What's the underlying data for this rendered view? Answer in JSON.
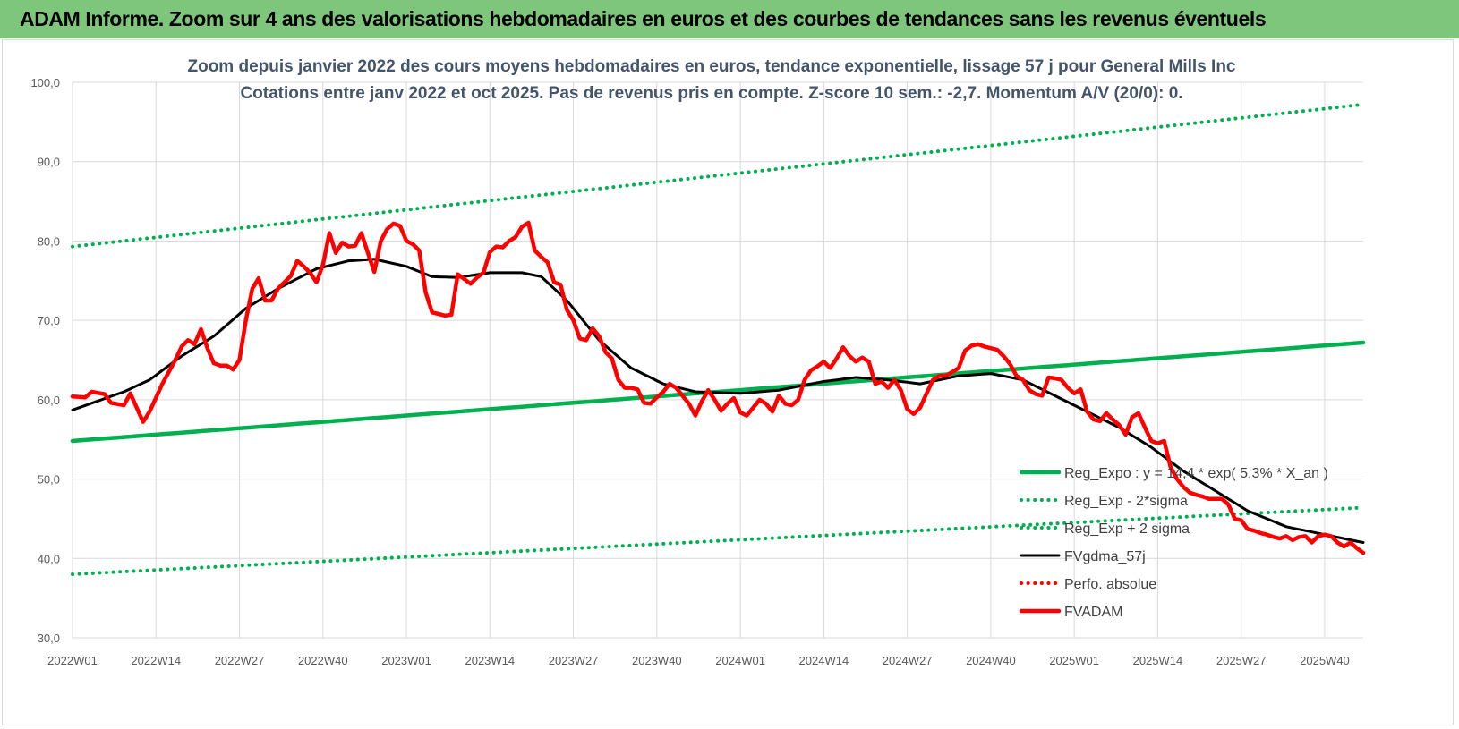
{
  "banner": {
    "title": "ADAM Informe. Zoom sur 4 ans des valorisations hebdomadaires en euros et des courbes de tendances sans les revenus éventuels"
  },
  "chart_data": {
    "type": "line",
    "title": "Zoom depuis janvier 2022 des cours moyens hebdomadaires en euros, tendance exponentielle, lissage 57 j pour General Mills Inc",
    "subtitle": "Cotations entre janv 2022 et oct 2025. Pas de revenus pris en compte. Z-score 10 sem.: -2,7. Momentum A/V (20/0): 0.",
    "xlabel": "",
    "ylabel": "",
    "ylim": [
      30,
      100
    ],
    "y_ticks": [
      "30,0",
      "40,0",
      "50,0",
      "60,0",
      "70,0",
      "80,0",
      "90,0",
      "100,0"
    ],
    "x_ticks": [
      "2022W01",
      "2022W14",
      "2022W27",
      "2022W40",
      "2023W01",
      "2023W14",
      "2023W27",
      "2023W40",
      "2024W01",
      "2024W14",
      "2024W27",
      "2024W40",
      "2025W01",
      "2025W14",
      "2025W27",
      "2025W40"
    ],
    "x_tick_index": [
      0,
      13,
      26,
      39,
      52,
      65,
      78,
      91,
      104,
      117,
      130,
      143,
      156,
      169,
      182,
      195
    ],
    "n_weeks": 202,
    "grid": true,
    "legend_position": "bottom-right",
    "series": [
      {
        "name": "Reg_Expo : y = 14,4 * exp( 5,3% * X_an )",
        "color": "#00b050",
        "style": "solid-thick",
        "anchors": [
          [
            0,
            54.8
          ],
          [
            201,
            67.2
          ]
        ]
      },
      {
        "name": "Reg_Exp - 2*sigma",
        "color": "#00b050",
        "style": "dotted",
        "anchors": [
          [
            0,
            38.0
          ],
          [
            201,
            46.4
          ]
        ]
      },
      {
        "name": "Reg_Exp + 2 sigma",
        "color": "#00b050",
        "style": "dotted",
        "anchors": [
          [
            0,
            79.3
          ],
          [
            201,
            97.2
          ]
        ]
      },
      {
        "name": "FVgdma_57j",
        "color": "#000000",
        "style": "solid",
        "anchors": [
          [
            0,
            58.7
          ],
          [
            8,
            61.0
          ],
          [
            12,
            62.5
          ],
          [
            17,
            65.5
          ],
          [
            22,
            68.0
          ],
          [
            27,
            71.5
          ],
          [
            32,
            74.0
          ],
          [
            38,
            76.5
          ],
          [
            43,
            77.5
          ],
          [
            47,
            77.7
          ],
          [
            52,
            76.8
          ],
          [
            56,
            75.5
          ],
          [
            60,
            75.4
          ],
          [
            65,
            76.0
          ],
          [
            70,
            76.0
          ],
          [
            73,
            75.5
          ],
          [
            77,
            72.5
          ],
          [
            82,
            67.5
          ],
          [
            87,
            64.0
          ],
          [
            92,
            62.0
          ],
          [
            97,
            61.0
          ],
          [
            104,
            60.8
          ],
          [
            110,
            61.2
          ],
          [
            117,
            62.3
          ],
          [
            122,
            62.8
          ],
          [
            127,
            62.5
          ],
          [
            132,
            62.0
          ],
          [
            138,
            63.0
          ],
          [
            143,
            63.3
          ],
          [
            148,
            62.5
          ],
          [
            153,
            60.5
          ],
          [
            158,
            58.5
          ],
          [
            163,
            56.5
          ],
          [
            168,
            54.0
          ],
          [
            173,
            51.0
          ],
          [
            178,
            48.5
          ],
          [
            183,
            46.0
          ],
          [
            189,
            44.0
          ],
          [
            195,
            43.0
          ],
          [
            201,
            42.0
          ]
        ]
      },
      {
        "name": "Perfo. absolue",
        "color": "#ff0000",
        "style": "dotted",
        "anchors": []
      },
      {
        "name": "FVADAM",
        "color": "#ff0000",
        "style": "solid-thick",
        "anchors": [
          [
            0,
            60.4
          ],
          [
            2,
            60.3
          ],
          [
            3,
            61.0
          ],
          [
            5,
            60.7
          ],
          [
            6,
            59.6
          ],
          [
            8,
            59.3
          ],
          [
            9,
            60.8
          ],
          [
            11,
            57.2
          ],
          [
            12,
            58.5
          ],
          [
            14,
            62.0
          ],
          [
            16,
            65.0
          ],
          [
            17,
            66.7
          ],
          [
            18,
            67.5
          ],
          [
            19,
            67.0
          ],
          [
            20,
            68.9
          ],
          [
            21,
            66.5
          ],
          [
            22,
            64.6
          ],
          [
            23,
            64.3
          ],
          [
            24,
            64.3
          ],
          [
            25,
            63.8
          ],
          [
            26,
            65.0
          ],
          [
            27,
            70.0
          ],
          [
            28,
            74.0
          ],
          [
            29,
            75.3
          ],
          [
            30,
            72.5
          ],
          [
            31,
            72.5
          ],
          [
            32,
            74.0
          ],
          [
            34,
            75.6
          ],
          [
            35,
            77.5
          ],
          [
            36,
            76.8
          ],
          [
            37,
            76.0
          ],
          [
            38,
            74.8
          ],
          [
            39,
            77.0
          ],
          [
            40,
            81.0
          ],
          [
            41,
            78.5
          ],
          [
            42,
            79.8
          ],
          [
            43,
            79.3
          ],
          [
            44,
            79.4
          ],
          [
            45,
            81.0
          ],
          [
            46,
            78.5
          ],
          [
            47,
            76.1
          ],
          [
            48,
            80.0
          ],
          [
            49,
            81.5
          ],
          [
            50,
            82.2
          ],
          [
            51,
            81.9
          ],
          [
            52,
            80.0
          ],
          [
            53,
            79.6
          ],
          [
            54,
            78.8
          ],
          [
            55,
            73.5
          ],
          [
            56,
            71.0
          ],
          [
            57,
            70.8
          ],
          [
            58,
            70.6
          ],
          [
            59,
            70.7
          ],
          [
            60,
            75.8
          ],
          [
            61,
            75.2
          ],
          [
            62,
            74.6
          ],
          [
            63,
            75.4
          ],
          [
            64,
            76.0
          ],
          [
            65,
            78.6
          ],
          [
            66,
            79.3
          ],
          [
            67,
            79.2
          ],
          [
            68,
            80.0
          ],
          [
            69,
            80.5
          ],
          [
            70,
            81.8
          ],
          [
            71,
            82.3
          ],
          [
            72,
            78.8
          ],
          [
            73,
            78.0
          ],
          [
            74,
            77.3
          ],
          [
            75,
            74.8
          ],
          [
            76,
            74.5
          ],
          [
            77,
            71.3
          ],
          [
            78,
            70.0
          ],
          [
            79,
            67.7
          ],
          [
            80,
            67.5
          ],
          [
            81,
            69.0
          ],
          [
            82,
            68.0
          ],
          [
            83,
            66.0
          ],
          [
            84,
            65.2
          ],
          [
            85,
            62.5
          ],
          [
            86,
            61.5
          ],
          [
            87,
            61.5
          ],
          [
            88,
            61.3
          ],
          [
            89,
            59.6
          ],
          [
            90,
            59.5
          ],
          [
            91,
            60.3
          ],
          [
            92,
            61.0
          ],
          [
            93,
            62.0
          ],
          [
            94,
            61.5
          ],
          [
            95,
            60.5
          ],
          [
            96,
            59.5
          ],
          [
            97,
            58.0
          ],
          [
            98,
            59.8
          ],
          [
            99,
            61.2
          ],
          [
            100,
            60.0
          ],
          [
            101,
            58.6
          ],
          [
            102,
            59.5
          ],
          [
            103,
            60.2
          ],
          [
            104,
            58.4
          ],
          [
            105,
            58.0
          ],
          [
            106,
            59.0
          ],
          [
            107,
            60.0
          ],
          [
            108,
            59.5
          ],
          [
            109,
            58.5
          ],
          [
            110,
            60.5
          ],
          [
            111,
            59.5
          ],
          [
            112,
            59.3
          ],
          [
            113,
            60.0
          ],
          [
            114,
            62.5
          ],
          [
            115,
            63.7
          ],
          [
            116,
            64.2
          ],
          [
            117,
            64.8
          ],
          [
            118,
            64.0
          ],
          [
            119,
            65.2
          ],
          [
            120,
            66.6
          ],
          [
            121,
            65.5
          ],
          [
            122,
            64.8
          ],
          [
            123,
            65.3
          ],
          [
            124,
            64.8
          ],
          [
            125,
            62.0
          ],
          [
            126,
            62.3
          ],
          [
            127,
            61.5
          ],
          [
            128,
            62.5
          ],
          [
            129,
            61.2
          ],
          [
            130,
            58.8
          ],
          [
            131,
            58.2
          ],
          [
            132,
            59.0
          ],
          [
            133,
            60.8
          ],
          [
            134,
            62.5
          ],
          [
            135,
            63.0
          ],
          [
            136,
            63.0
          ],
          [
            137,
            63.5
          ],
          [
            138,
            64.0
          ],
          [
            139,
            66.2
          ],
          [
            140,
            66.8
          ],
          [
            141,
            67.0
          ],
          [
            142,
            66.7
          ],
          [
            143,
            66.5
          ],
          [
            144,
            66.3
          ],
          [
            145,
            65.5
          ],
          [
            146,
            64.5
          ],
          [
            147,
            63.0
          ],
          [
            148,
            62.5
          ],
          [
            149,
            61.2
          ],
          [
            150,
            60.7
          ],
          [
            151,
            60.5
          ],
          [
            152,
            62.8
          ],
          [
            153,
            62.7
          ],
          [
            154,
            62.5
          ],
          [
            155,
            61.5
          ],
          [
            156,
            60.8
          ],
          [
            157,
            61.3
          ],
          [
            158,
            58.5
          ],
          [
            159,
            57.5
          ],
          [
            160,
            57.3
          ],
          [
            161,
            58.3
          ],
          [
            162,
            57.5
          ],
          [
            163,
            56.8
          ],
          [
            164,
            55.6
          ],
          [
            165,
            57.8
          ],
          [
            166,
            58.3
          ],
          [
            167,
            56.5
          ],
          [
            168,
            54.8
          ],
          [
            169,
            54.5
          ],
          [
            170,
            54.8
          ],
          [
            171,
            51.5
          ],
          [
            172,
            50.0
          ],
          [
            173,
            49.0
          ],
          [
            174,
            48.3
          ],
          [
            175,
            48.0
          ],
          [
            176,
            47.8
          ],
          [
            177,
            47.5
          ],
          [
            178,
            47.5
          ],
          [
            179,
            47.5
          ],
          [
            180,
            46.8
          ],
          [
            181,
            45.0
          ],
          [
            182,
            44.8
          ],
          [
            183,
            43.7
          ],
          [
            184,
            43.5
          ],
          [
            185,
            43.2
          ],
          [
            186,
            43.0
          ],
          [
            187,
            42.7
          ],
          [
            188,
            42.5
          ],
          [
            189,
            42.8
          ],
          [
            190,
            42.3
          ],
          [
            191,
            42.7
          ],
          [
            192,
            42.8
          ],
          [
            193,
            42.0
          ],
          [
            194,
            42.8
          ],
          [
            195,
            43.0
          ],
          [
            196,
            42.8
          ],
          [
            197,
            42.0
          ],
          [
            198,
            41.5
          ],
          [
            199,
            42.0
          ],
          [
            200,
            41.3
          ],
          [
            201,
            40.7
          ]
        ]
      }
    ]
  }
}
